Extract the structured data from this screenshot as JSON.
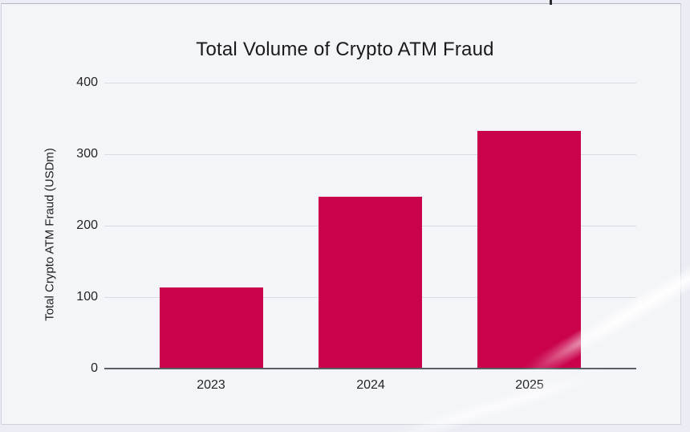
{
  "page": {
    "background_color": "#ECEDF4",
    "card_background_color": "#F4F5F8",
    "card_border_color": "#CFD2DB"
  },
  "chart_data": {
    "type": "bar",
    "title": "Total Volume of Crypto ATM Fraud",
    "xlabel": "",
    "ylabel": "Total Crypto ATM Fraud (USDm)",
    "categories": [
      "2023",
      "2024",
      "2025"
    ],
    "values": [
      114,
      240,
      333
    ],
    "ylim": [
      0,
      400
    ],
    "yticks": [
      0,
      100,
      200,
      300,
      400
    ],
    "grid": true,
    "legend_position": "none",
    "bar_color": "#C9024B",
    "gridline_color": "#DADCE1",
    "axis_line_color": "#5A5E66",
    "text_color": "#1E1E1E"
  }
}
